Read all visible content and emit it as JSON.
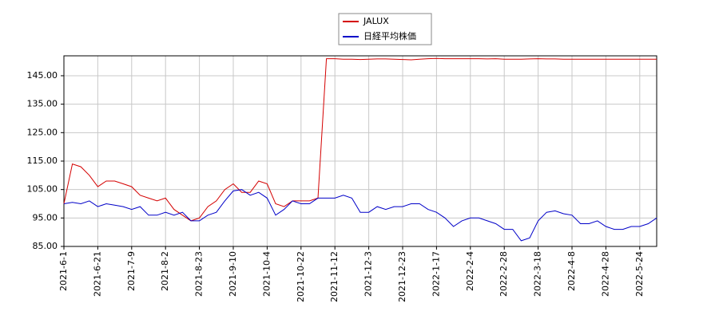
{
  "chart_data": {
    "type": "line",
    "categories": [
      "2021-6-1",
      null,
      null,
      null,
      "2021-6-21",
      null,
      null,
      null,
      "2021-7-9",
      null,
      null,
      null,
      "2021-8-2",
      null,
      null,
      null,
      "2021-8-23",
      null,
      null,
      null,
      "2021-9-10",
      null,
      null,
      null,
      "2021-10-4",
      null,
      null,
      null,
      "2021-10-22",
      null,
      null,
      null,
      "2021-11-12",
      null,
      null,
      null,
      "2021-12-3",
      null,
      null,
      null,
      "2021-12-23",
      null,
      null,
      null,
      "2022-1-17",
      null,
      null,
      null,
      "2022-2-4",
      null,
      null,
      null,
      "2022-2-28",
      null,
      null,
      null,
      "2022-3-18",
      null,
      null,
      null,
      "2022-4-8",
      null,
      null,
      null,
      "2022-4-28",
      null,
      null,
      null,
      "2022-5-24",
      null,
      null
    ],
    "series": [
      {
        "name": "JALUX",
        "color": "#d40000",
        "values": [
          100,
          114,
          113,
          110,
          106,
          108,
          108,
          107,
          106,
          103,
          102,
          101,
          102,
          98,
          96,
          94,
          95,
          99,
          101,
          105,
          107,
          104,
          104,
          108,
          107,
          100,
          99,
          101,
          101,
          101,
          102,
          151,
          151,
          150.8,
          150.8,
          150.7,
          150.8,
          150.9,
          150.9,
          150.8,
          150.7,
          150.6,
          150.8,
          151,
          151.1,
          151,
          151,
          151,
          151,
          151,
          150.9,
          151,
          150.8,
          150.8,
          150.8,
          150.9,
          151,
          150.9,
          150.9,
          150.8,
          150.8,
          150.8,
          150.8,
          150.8,
          150.8,
          150.8,
          150.8,
          150.8,
          150.8,
          150.8,
          150.8
        ]
      },
      {
        "name": "日経平均株価",
        "color": "#0000c8",
        "values": [
          100,
          100.5,
          100,
          101,
          99,
          100,
          99.5,
          99,
          98,
          99,
          96,
          96,
          97,
          96,
          97,
          94,
          94,
          96,
          97,
          101,
          104.5,
          105,
          103,
          104,
          102,
          96,
          98,
          101,
          100,
          100,
          102,
          102,
          102,
          103,
          102,
          97,
          97,
          99,
          98,
          99,
          99,
          100,
          100,
          98,
          97,
          95,
          92,
          94,
          95,
          95,
          94,
          93,
          91,
          91,
          87,
          88,
          94,
          97,
          97.5,
          96.5,
          96,
          93,
          93,
          94,
          92,
          91,
          91,
          92,
          92,
          93,
          95
        ]
      }
    ],
    "ylim": [
      85,
      152
    ],
    "yticks": [
      {
        "value": 85,
        "label": "85.00"
      },
      {
        "value": 95,
        "label": "95.00"
      },
      {
        "value": 105,
        "label": "105.00"
      },
      {
        "value": 115,
        "label": "115.00"
      },
      {
        "value": 125,
        "label": "125.00"
      },
      {
        "value": 135,
        "label": "135.00"
      },
      {
        "value": 145,
        "label": "145.00"
      }
    ],
    "grid": true
  }
}
